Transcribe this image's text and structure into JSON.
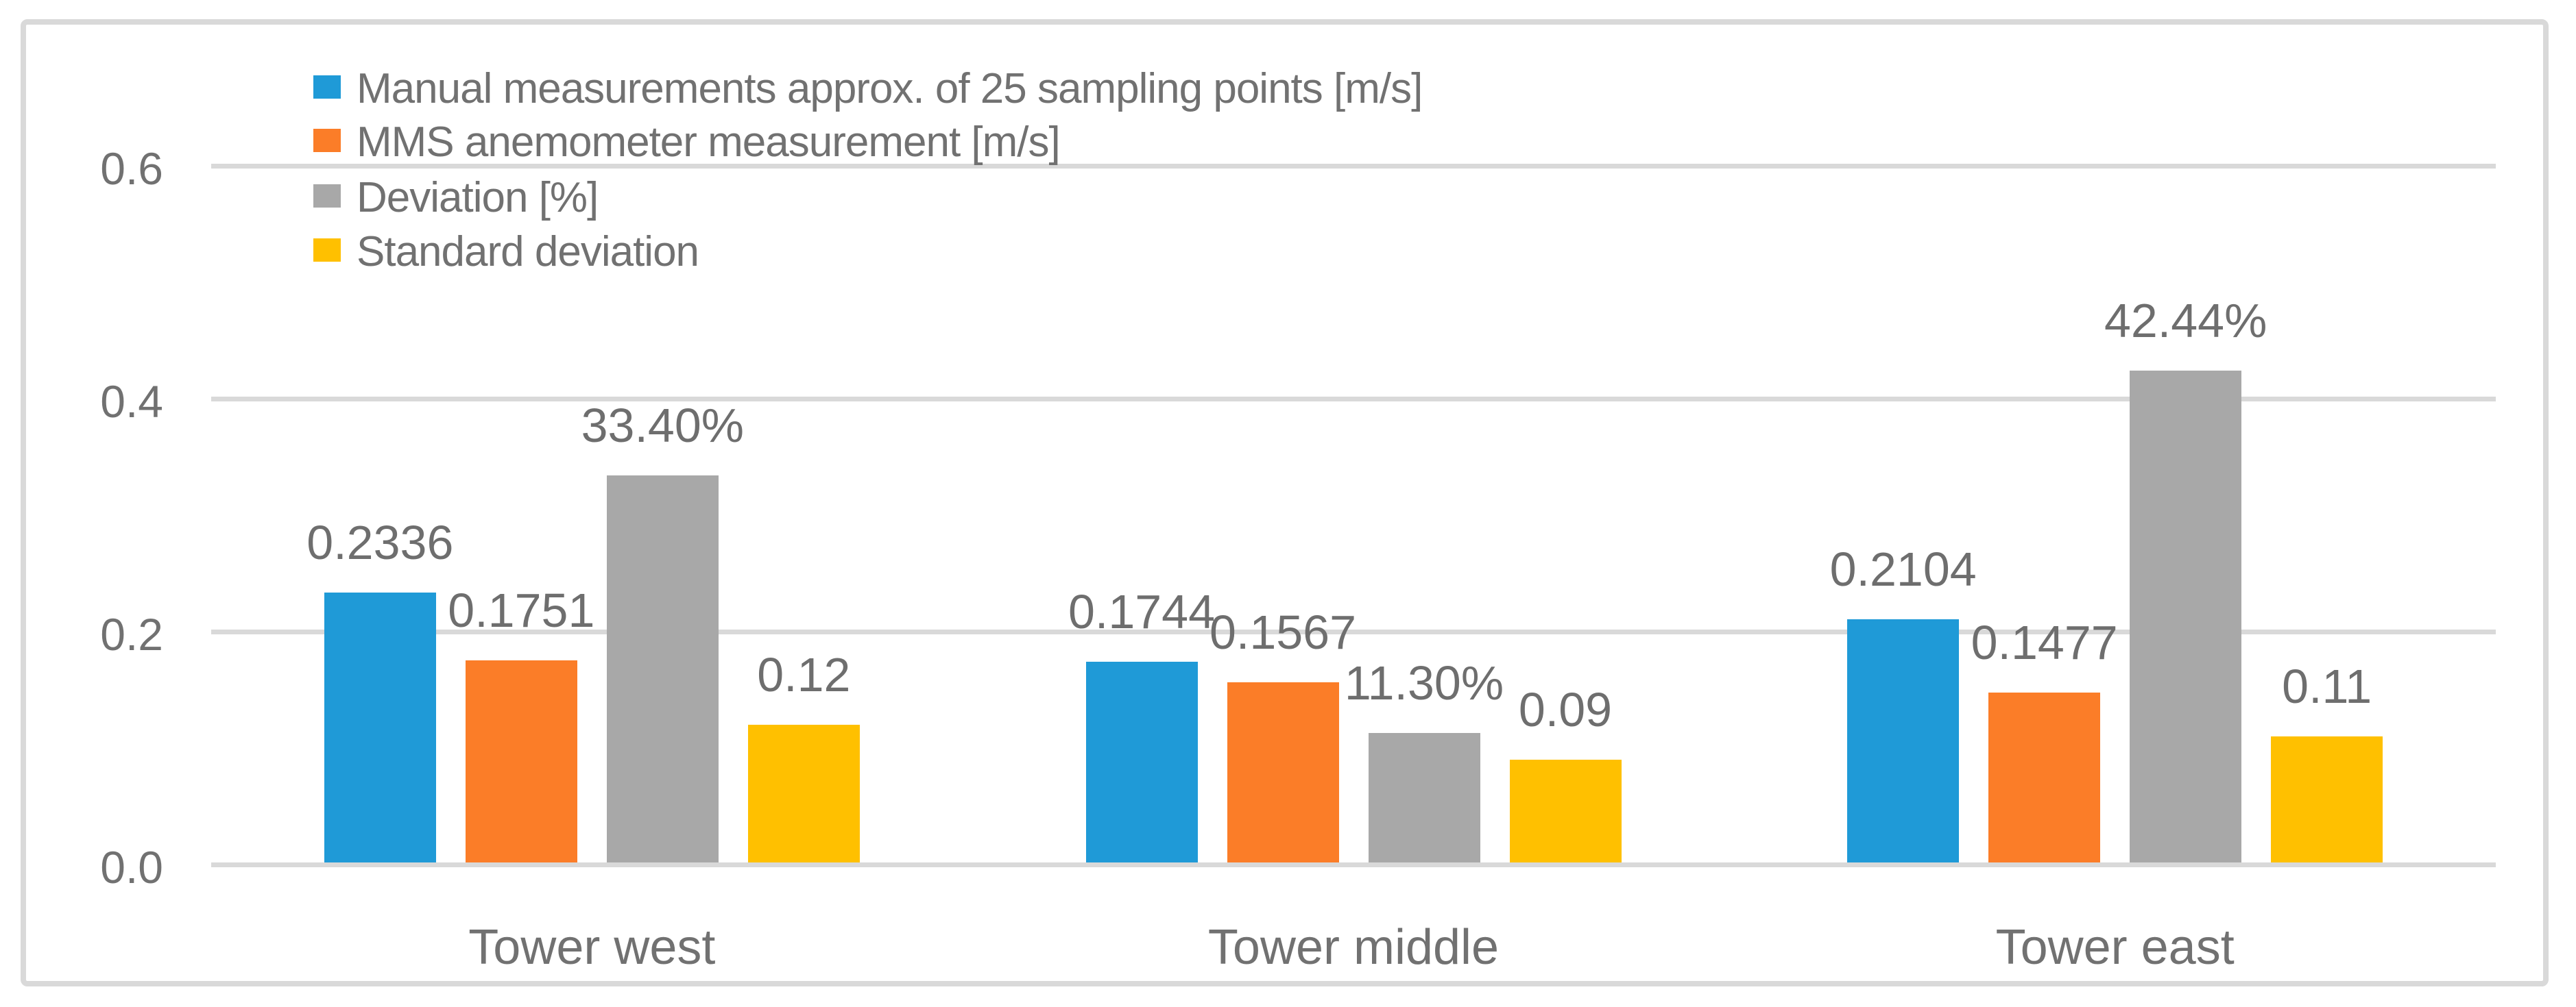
{
  "chart_data": {
    "type": "bar",
    "title": "",
    "xlabel": "",
    "ylabel": "",
    "categories": [
      "Tower west",
      "Tower middle",
      "Tower east"
    ],
    "series": [
      {
        "name": "Manual measurements approx. of 25 sampling points [m/s]",
        "color": "#1F9AD7",
        "values": [
          0.2336,
          0.1744,
          0.2104
        ],
        "data_labels": [
          "0.2336",
          "0.1744",
          "0.2104"
        ]
      },
      {
        "name": "MMS anemometer measurement [m/s]",
        "color": "#FB7D28",
        "values": [
          0.1751,
          0.1567,
          0.1477
        ],
        "data_labels": [
          "0.1751",
          "0.1567",
          "0.1477"
        ]
      },
      {
        "name": "Deviation [%]",
        "color": "#A8A8A8",
        "values": [
          0.334,
          0.113,
          0.4244
        ],
        "data_labels": [
          "33.40%",
          "11.30%",
          "42.44%"
        ]
      },
      {
        "name": "Standard deviation",
        "color": "#FFC000",
        "values": [
          0.12,
          0.09,
          0.11
        ],
        "data_labels": [
          "0.12",
          "0.09",
          "0.11"
        ]
      }
    ],
    "y_axis": {
      "tick_labels": [
        "0.0",
        "0.2",
        "0.4",
        "0.6"
      ],
      "tick_values": [
        0.0,
        0.2,
        0.4,
        0.6
      ],
      "min": 0.0,
      "max": 0.7,
      "gridlines": true
    },
    "legend": {
      "position": "top-left",
      "entries": [
        "Manual measurements approx. of 25 sampling points [m/s]",
        "MMS anemometer measurement [m/s]",
        "Deviation [%]",
        "Standard deviation"
      ]
    }
  },
  "theme": {
    "background": "#FFFFFF",
    "border_color": "#D9D9D9",
    "grid_color": "#D9D9D9",
    "text_color": "#717171"
  }
}
